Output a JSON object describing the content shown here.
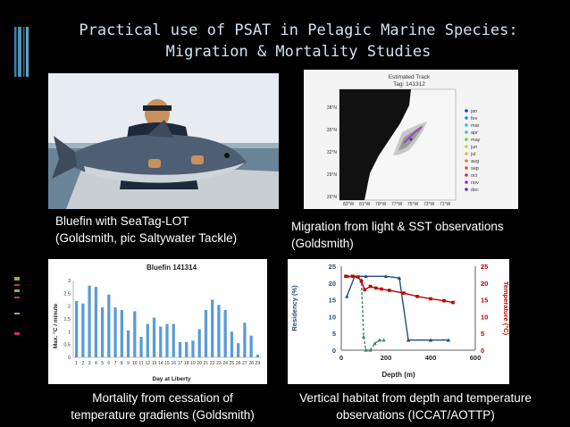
{
  "slide": {
    "title_line1": "Practical use of PSAT in Pelagic Marine Species:",
    "title_line2": "Migration & Mortality Studies"
  },
  "captions": {
    "photo_line1": "Bluefin with SeaTag-LOT",
    "photo_line2": "(Goldsmith, pic Saltywater Tackle)",
    "map_line1": "Migration from light & SST observations",
    "map_line2": "(Goldsmith)",
    "mortality_line1": "Mortality from cessation of",
    "mortality_line2": "temperature gradients (Goldsmith)",
    "vertical_line1": "Vertical habitat from depth and temperature",
    "vertical_line2": "observations (ICCAT/AOTTP)"
  },
  "map": {
    "title_line1": "Estimated Track",
    "title_line2": "Tag: 141312",
    "lat_labels": [
      "38°N",
      "35°N",
      "32°N",
      "29°N",
      "26°N"
    ],
    "lon_labels": [
      "83°W",
      "81°W",
      "79°W",
      "77°W",
      "75°W",
      "73°W",
      "71°W"
    ],
    "legend": [
      "jan",
      "fev",
      "mar",
      "apr",
      "may",
      "jun",
      "jul",
      "aug",
      "sep",
      "oct",
      "nov",
      "dec"
    ],
    "legend_colors": [
      "#1f3fbf",
      "#2f7fd8",
      "#2fb8d8",
      "#2fd89a",
      "#6fd82f",
      "#b8d82f",
      "#d8b82f",
      "#d8822f",
      "#d84f2f",
      "#b82f6f",
      "#8f2fb8",
      "#5f2fd8"
    ]
  },
  "chart_data": [
    {
      "type": "bar",
      "title": "Bluefin 141314",
      "xlabel": "Day at Liberty",
      "ylabel": "Max. °C / minute",
      "ylim": [
        0,
        3
      ],
      "yticks": [
        "0",
        "0.5",
        "1",
        "1.5",
        "2",
        "2.5",
        "3"
      ],
      "categories": [
        "1",
        "2",
        "3",
        "4",
        "5",
        "6",
        "7",
        "8",
        "9",
        "10",
        "11",
        "12",
        "13",
        "14",
        "15",
        "16",
        "17",
        "18",
        "19",
        "20",
        "21",
        "22",
        "23",
        "24",
        "25",
        "26",
        "27",
        "28",
        "29"
      ],
      "values": [
        2.2,
        2.1,
        2.8,
        2.75,
        1.95,
        2.45,
        1.95,
        1.85,
        1.05,
        1.8,
        0.8,
        1.3,
        1.55,
        1.2,
        1.3,
        1.3,
        0.6,
        0.6,
        0.65,
        1.1,
        1.85,
        2.25,
        2.05,
        1.85,
        1.0,
        0.55,
        1.35,
        0.85,
        0.1
      ],
      "color": "#5b9bd5"
    },
    {
      "type": "line",
      "xlabel": "Depth (m)",
      "ylabel_left": "Residency (%)",
      "ylabel_right": "Temperature (°C)",
      "xlim": [
        0,
        600
      ],
      "ylim": [
        0,
        25
      ],
      "xticks": [
        "0",
        "200",
        "400",
        "600"
      ],
      "yticks_left": [
        "0",
        "5",
        "10",
        "15",
        "20",
        "25"
      ],
      "yticks_right": [
        "0",
        "5",
        "10",
        "15",
        "20",
        "25"
      ],
      "series": [
        {
          "color": "#1f4e79",
          "x": [
            25,
            60,
            110,
            200,
            260,
            300,
            400,
            480
          ],
          "y": [
            16,
            22,
            22,
            22,
            21.5,
            3,
            3,
            3
          ]
        },
        {
          "color": "#3b8a6a",
          "x": [
            30,
            60,
            90,
            100,
            110,
            130,
            150,
            170,
            190
          ],
          "y": [
            22,
            22,
            21,
            4,
            0,
            0,
            2,
            3,
            3
          ]
        },
        {
          "color": "#c00000",
          "x": [
            20,
            50,
            75,
            90,
            105,
            130,
            155,
            180,
            215,
            280,
            340,
            400,
            460,
            500
          ],
          "y": [
            22,
            22,
            21.8,
            20.5,
            18,
            19,
            18.5,
            18.2,
            17.8,
            17,
            16,
            15.3,
            14.7,
            14.2
          ]
        }
      ]
    }
  ]
}
